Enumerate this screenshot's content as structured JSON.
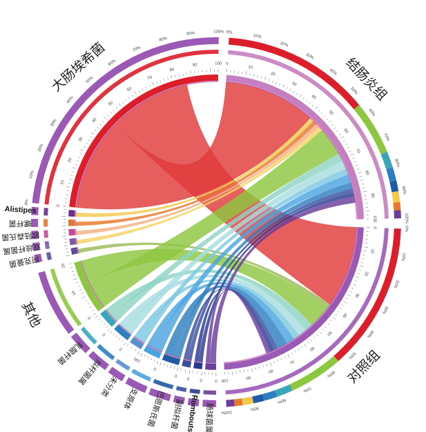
{
  "groups": [
    {
      "key": "ecoli",
      "label": "大肠埃希菌",
      "latin": false,
      "size": 100,
      "color": "#dc1e2a",
      "ticks": [
        "0",
        "10",
        "20",
        "30",
        "40",
        "50",
        "60",
        "70",
        "80",
        "90",
        "100"
      ],
      "inner_ticks": [
        "0",
        "10",
        "20",
        "30",
        "40",
        "50",
        "60",
        "70",
        "80",
        "90"
      ]
    },
    {
      "key": "alistipes",
      "label": "Alistipes",
      "latin": true,
      "size": 3,
      "color": "#6b2d8a"
    },
    {
      "key": "luoganjun",
      "label": "螺杆菌",
      "latin": false,
      "size": 3,
      "color": "#e8762b"
    },
    {
      "key": "oulu",
      "label": "欧陆森氏菌",
      "latin": false,
      "size": 3,
      "color": "#c44d9a"
    },
    {
      "key": "shuangqi",
      "label": "双歧杆菌属",
      "latin": false,
      "size": 3,
      "color": "#7a5ca8"
    },
    {
      "key": "akeman",
      "label": "阿克曼菌",
      "latin": false,
      "size": 3,
      "color": "#5c4a9c"
    },
    {
      "key": "qita",
      "label": "其他",
      "latin": false,
      "size": 25,
      "color": "#8dc63f",
      "ticks": [
        "0",
        "10",
        "20"
      ],
      "inner_ticks": [
        "0",
        "10",
        "20"
      ]
    },
    {
      "key": "rusuan",
      "label": "乳酸杆菌",
      "latin": false,
      "size": 8,
      "color": "#3aa6b9",
      "ticks": [
        "0"
      ]
    },
    {
      "key": "nigan",
      "label": "拟杆菌属",
      "latin": false,
      "size": 8,
      "color": "#2c7fc1",
      "ticks": [
        "0"
      ]
    },
    {
      "key": "weifenlei",
      "label": "未分类",
      "latin": false,
      "size": 6,
      "color": "#5a8fd0",
      "ticks": [
        "0"
      ]
    },
    {
      "key": "zhiyuanti",
      "label": "支原体",
      "latin": false,
      "size": 8,
      "color": "#4aa3df",
      "ticks": [
        "0",
        "10"
      ]
    },
    {
      "key": "baensi",
      "label": "巴恩斯氏菌",
      "latin": false,
      "size": 8,
      "color": "#1f5aa6",
      "ticks": [
        "0"
      ]
    },
    {
      "key": "kuangtou",
      "label": "副拟杆菌",
      "latin": false,
      "size": 4,
      "color": "#3b4fa0",
      "ticks": [
        "0"
      ]
    },
    {
      "key": "romboutsia",
      "label": "Romboutsia",
      "latin": true,
      "size": 4,
      "color": "#2b3990",
      "ticks": [
        "0"
      ]
    },
    {
      "key": "changqiu",
      "label": "肠球菌属",
      "latin": false,
      "size": 5,
      "color": "#6a3d9a",
      "ticks": [
        "0"
      ]
    },
    {
      "key": "jieyan",
      "label": "结肠炎组",
      "latin": false,
      "size": 100,
      "color": "#c57fc0",
      "ticks": [
        "0",
        "10",
        "20",
        "30",
        "40",
        "50",
        "60",
        "70",
        "80",
        "90",
        "100"
      ],
      "inner_ticks": [
        "0",
        "10",
        "20",
        "30",
        "40",
        "50",
        "60",
        "70",
        "80",
        "90"
      ]
    },
    {
      "key": "duizhao",
      "label": "对照组",
      "latin": false,
      "size": 100,
      "color": "#9b59b6",
      "ticks": [
        "0",
        "10",
        "20",
        "30",
        "40",
        "50",
        "60",
        "70",
        "80",
        "90",
        "100"
      ],
      "inner_ticks": [
        "0",
        "10",
        "20",
        "30",
        "40",
        "50",
        "60",
        "70",
        "80",
        "90"
      ]
    }
  ],
  "chords": [
    {
      "from": "ecoli",
      "to": "jieyan",
      "value": 45,
      "color": "#e03a3a"
    },
    {
      "from": "ecoli",
      "to": "duizhao",
      "value": 40,
      "color": "#e03a3a"
    },
    {
      "from": "alistipes",
      "to": "jieyan",
      "value": 2,
      "color": "#f2c94c"
    },
    {
      "from": "luoganjun",
      "to": "jieyan",
      "value": 2,
      "color": "#e8762b"
    },
    {
      "from": "oulu",
      "to": "jieyan",
      "value": 2,
      "color": "#f4b183"
    },
    {
      "from": "shuangqi",
      "to": "jieyan",
      "value": 2,
      "color": "#f6d365"
    },
    {
      "from": "akeman",
      "to": "duizhao",
      "value": 2,
      "color": "#9bbb59"
    },
    {
      "from": "qita",
      "to": "jieyan",
      "value": 14,
      "color": "#8dc63f"
    },
    {
      "from": "qita",
      "to": "duizhao",
      "value": 11,
      "color": "#8dc63f"
    },
    {
      "from": "rusuan",
      "to": "jieyan",
      "value": 4,
      "color": "#8fd4c5"
    },
    {
      "from": "rusuan",
      "to": "duizhao",
      "value": 4,
      "color": "#8fd4c5"
    },
    {
      "from": "nigan",
      "to": "jieyan",
      "value": 4,
      "color": "#a8dde0"
    },
    {
      "from": "nigan",
      "to": "duizhao",
      "value": 4,
      "color": "#a8dde0"
    },
    {
      "from": "weifenlei",
      "to": "jieyan",
      "value": 3,
      "color": "#7ec8e3"
    },
    {
      "from": "weifenlei",
      "to": "duizhao",
      "value": 3,
      "color": "#7ec8e3"
    },
    {
      "from": "zhiyuanti",
      "to": "jieyan",
      "value": 4,
      "color": "#4aa3df"
    },
    {
      "from": "zhiyuanti",
      "to": "duizhao",
      "value": 4,
      "color": "#4aa3df"
    },
    {
      "from": "baensi",
      "to": "jieyan",
      "value": 3,
      "color": "#2c7fc1"
    },
    {
      "from": "baensi",
      "to": "duizhao",
      "value": 5,
      "color": "#2c7fc1"
    },
    {
      "from": "kuangtou",
      "to": "jieyan",
      "value": 2,
      "color": "#3b4fa0"
    },
    {
      "from": "kuangtou",
      "to": "duizhao",
      "value": 2,
      "color": "#3b4fa0"
    },
    {
      "from": "romboutsia",
      "to": "jieyan",
      "value": 2,
      "color": "#2b3990"
    },
    {
      "from": "romboutsia",
      "to": "duizhao",
      "value": 2,
      "color": "#2b3990"
    },
    {
      "from": "changqiu",
      "to": "jieyan",
      "value": 3,
      "color": "#6a3d9a"
    },
    {
      "from": "changqiu",
      "to": "duizhao",
      "value": 2,
      "color": "#6a3d9a"
    }
  ],
  "percent_ticks": [
    "0%",
    "10%",
    "20%",
    "30%",
    "40%",
    "50%",
    "60%",
    "70%",
    "80%",
    "90%",
    "100%"
  ],
  "composition_colors": [
    "#dc1e2a",
    "#8dc63f",
    "#3aa6b9",
    "#2c7fc1",
    "#1f5aa6",
    "#f2c94c",
    "#e8762b",
    "#6a3d9a"
  ]
}
